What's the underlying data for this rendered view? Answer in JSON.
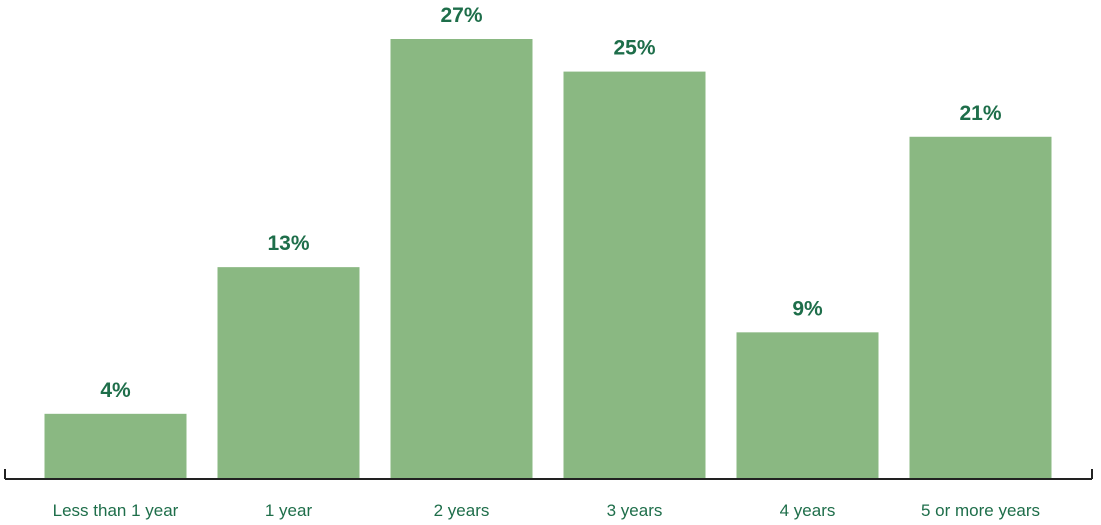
{
  "colors": {
    "bar": "#8ab882",
    "value_label": "#1e6e4a",
    "tick_label": "#1e6e4a",
    "axis": "#222222"
  },
  "chart_data": {
    "type": "bar",
    "categories": [
      "Less than 1 year",
      "1 year",
      "2 years",
      "3 years",
      "4 years",
      "5 or more years"
    ],
    "values": [
      4,
      13,
      27,
      25,
      9,
      21
    ],
    "value_labels": [
      "4%",
      "13%",
      "27%",
      "25%",
      "9%",
      "21%"
    ],
    "unit": "%",
    "ylim": [
      0,
      27
    ],
    "grid": false,
    "legend": "none"
  }
}
